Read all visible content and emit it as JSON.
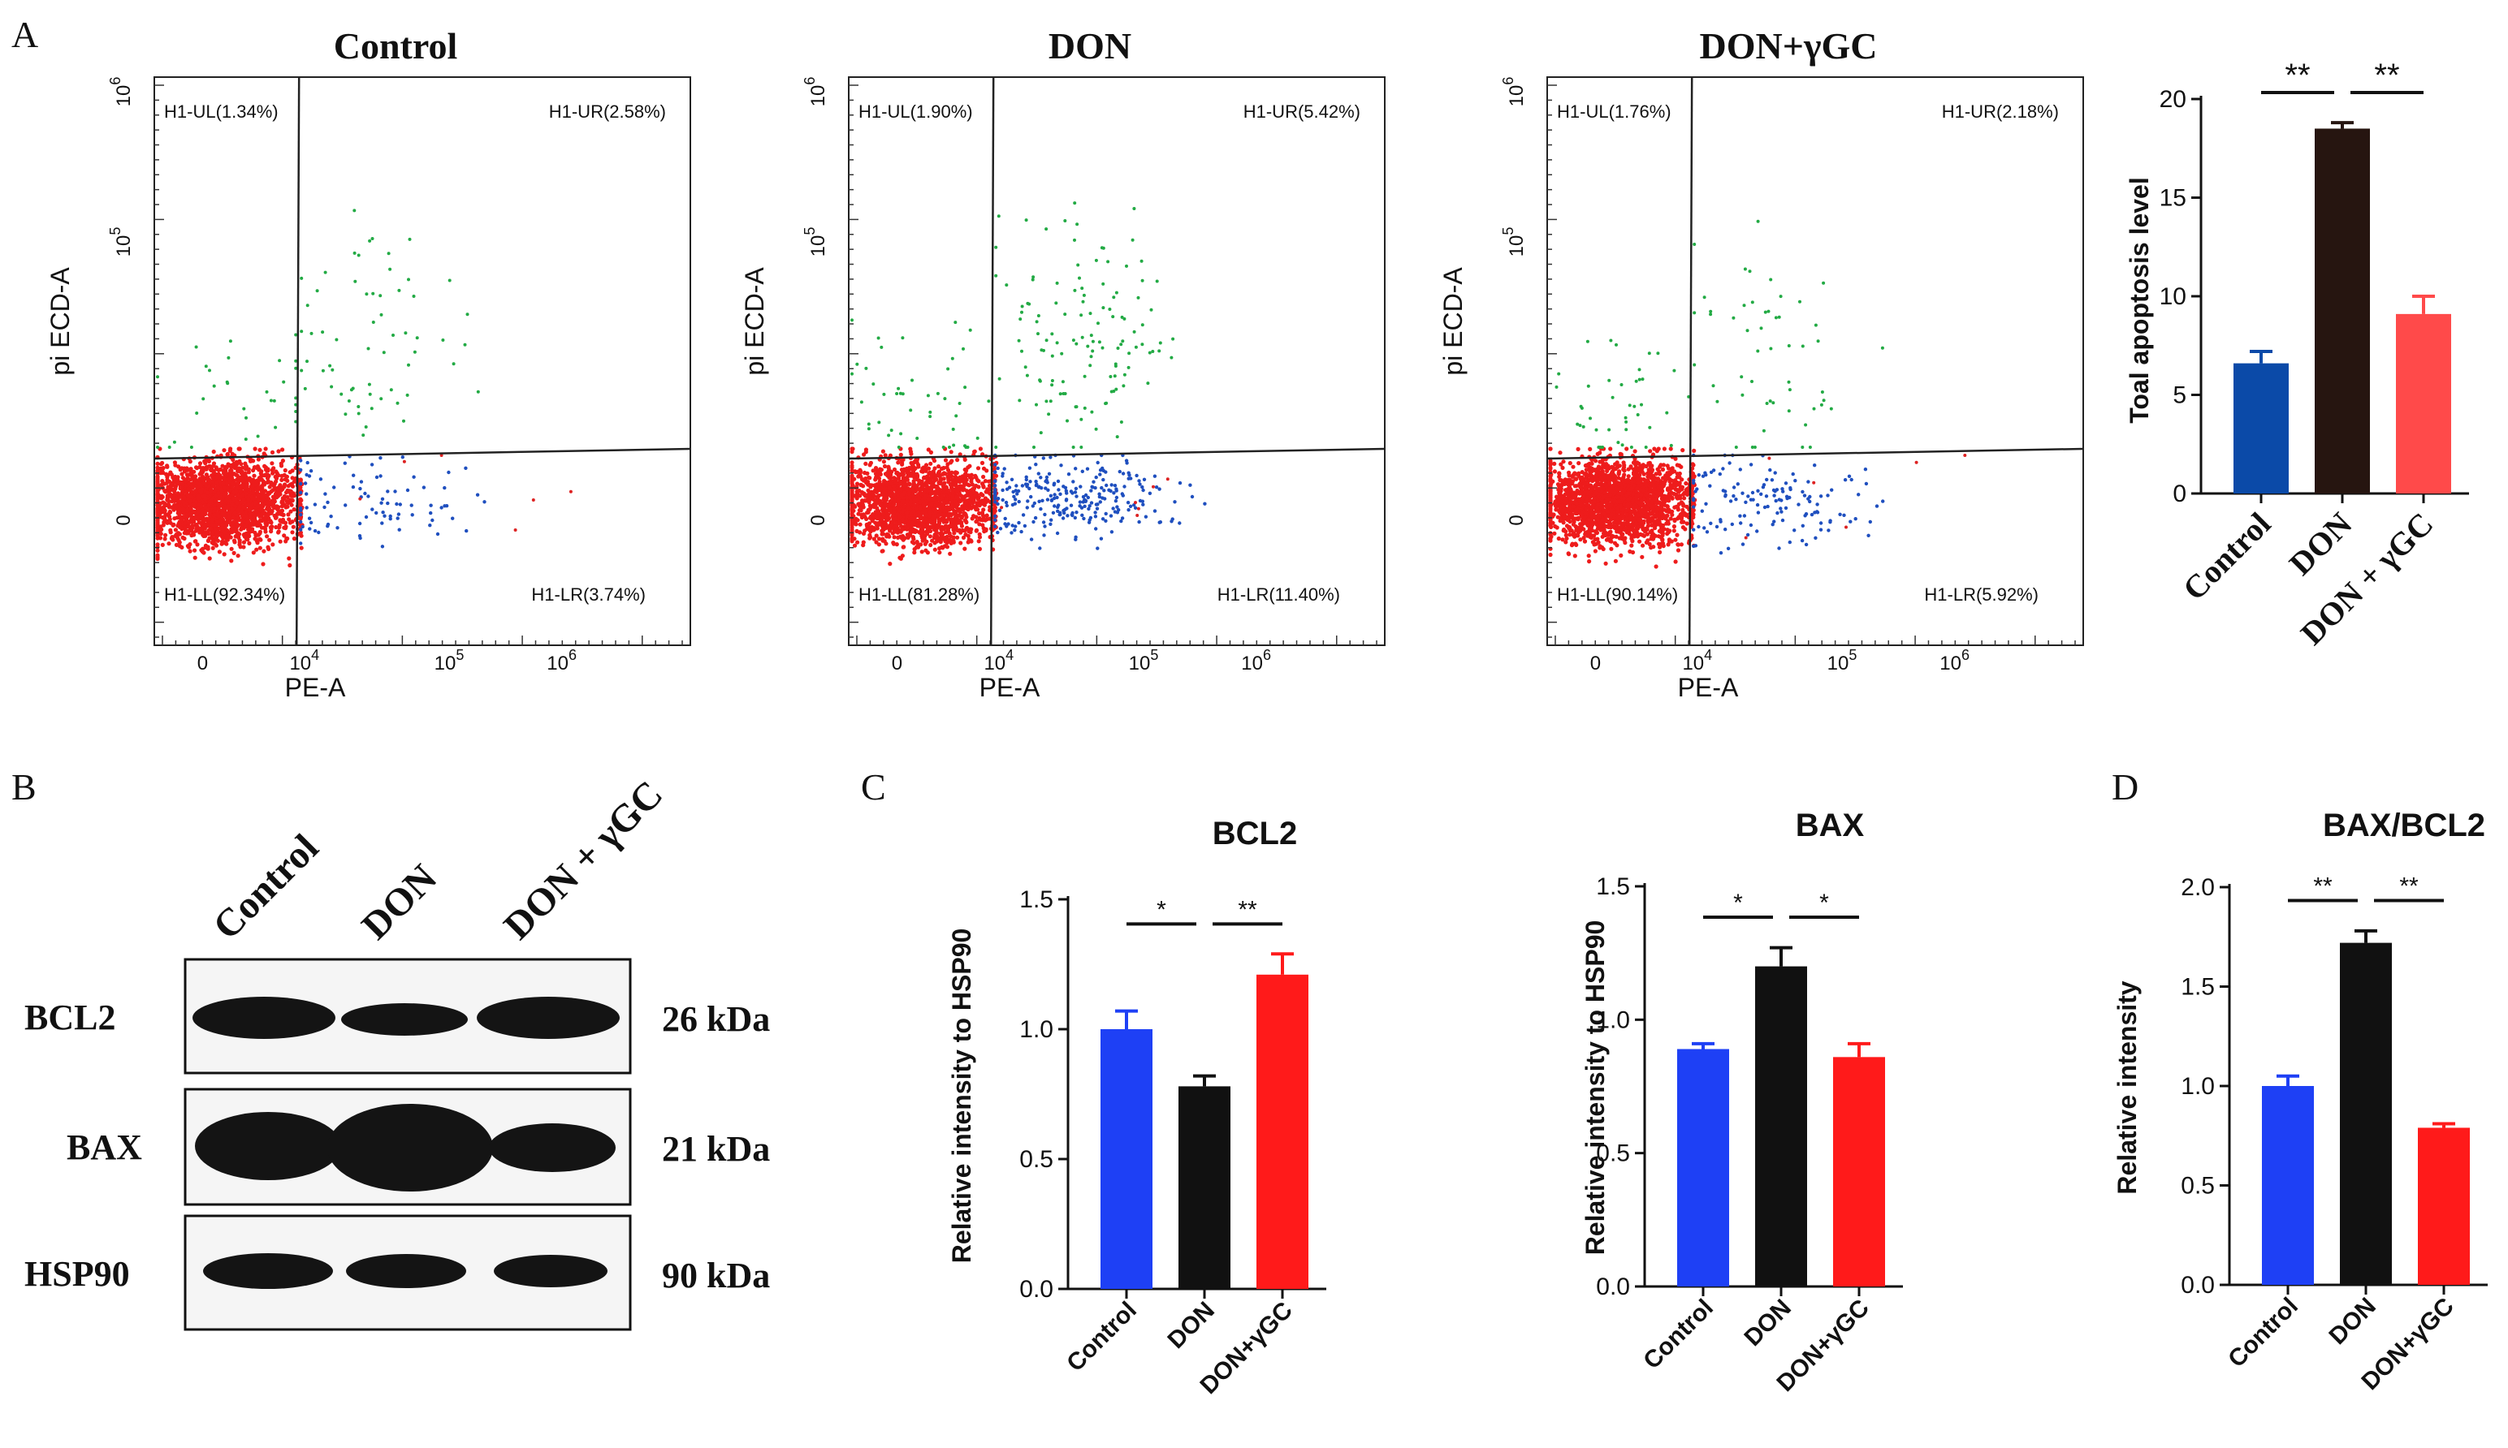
{
  "panel_letters": {
    "a": "A",
    "b": "B",
    "c": "C",
    "d": "D"
  },
  "colors": {
    "ll": "#ee1c1c",
    "ul": "#22aa44",
    "ur": "#22aa44",
    "lr": "#1f4fbf",
    "stray": "#dd2222",
    "bar_blue": "#1e40f5",
    "bar_black": "#111111",
    "bar_red": "#ff1a1a",
    "a_blue": "#0b4aa8",
    "a_dark": "#261510",
    "a_red": "#ff4a4a",
    "blot_bg": "#f5f5f5",
    "band": "#141414"
  },
  "flow": {
    "ylabel": "pi ECD-A",
    "xlabel": "PE-A",
    "yticks": [
      {
        "base": "10",
        "exp": "6"
      },
      {
        "base": "10",
        "exp": "5"
      },
      {
        "base": "0",
        "exp": ""
      }
    ],
    "xticks": [
      {
        "base": "0",
        "exp": ""
      },
      {
        "base": "10",
        "exp": "4"
      },
      {
        "base": "10",
        "exp": "5"
      },
      {
        "base": "10",
        "exp": "6"
      }
    ],
    "plots": [
      {
        "title": "Control",
        "ul": "H1-UL(1.34%)",
        "ur": "H1-UR(2.58%)",
        "ll": "H1-LL(92.34%)",
        "lr": "H1-LR(3.74%)",
        "quadrants": {
          "ul": 1.34,
          "ur": 2.58,
          "ll": 92.34,
          "lr": 3.74
        }
      },
      {
        "title": "DON",
        "ul": "H1-UL(1.90%)",
        "ur": "H1-UR(5.42%)",
        "ll": "H1-LL(81.28%)",
        "lr": "H1-LR(11.40%)",
        "quadrants": {
          "ul": 1.9,
          "ur": 5.42,
          "ll": 81.28,
          "lr": 11.4
        }
      },
      {
        "title": "DON+γGC",
        "ul": "H1-UL(1.76%)",
        "ur": "H1-UR(2.18%)",
        "ll": "H1-LL(90.14%)",
        "lr": "H1-LR(5.92%)",
        "quadrants": {
          "ul": 1.76,
          "ur": 2.18,
          "ll": 90.14,
          "lr": 5.92
        }
      }
    ]
  },
  "western": {
    "lanes": [
      "Control",
      "DON",
      "DON + γGC"
    ],
    "rows": [
      {
        "protein": "BCL2",
        "kda": "26 kDa",
        "intensity": [
          1.0,
          0.78,
          1.0
        ]
      },
      {
        "protein": "BAX",
        "kda": "21 kDa",
        "intensity": [
          1.0,
          1.3,
          0.8
        ]
      },
      {
        "protein": "HSP90",
        "kda": "90 kDa",
        "intensity": [
          1.0,
          0.95,
          0.85
        ]
      }
    ]
  },
  "chart_data": [
    {
      "id": "apoptosis",
      "type": "bar",
      "title": "",
      "ylabel": "Toal apoptosis level",
      "categories": [
        "Control",
        "DON",
        "DON + γGC"
      ],
      "values": [
        6.6,
        18.5,
        9.1
      ],
      "errors": [
        0.6,
        0.3,
        0.9
      ],
      "ylim": [
        0,
        20
      ],
      "yticks": [
        "0",
        "5",
        "10",
        "15",
        "20"
      ],
      "sig": [
        {
          "from": 0,
          "to": 1,
          "label": "**"
        },
        {
          "from": 1,
          "to": 2,
          "label": "**"
        }
      ]
    },
    {
      "id": "bcl2",
      "type": "bar",
      "title": "BCL2",
      "ylabel": "Relative intensity to HSP90",
      "categories": [
        "Control",
        "DON",
        "DON+γGC"
      ],
      "values": [
        1.0,
        0.78,
        1.21
      ],
      "errors": [
        0.07,
        0.04,
        0.08
      ],
      "ylim": [
        0,
        1.5
      ],
      "yticks": [
        "0.0",
        "0.5",
        "1.0",
        "1.5"
      ],
      "sig": [
        {
          "from": 0,
          "to": 1,
          "label": "*"
        },
        {
          "from": 1,
          "to": 2,
          "label": "**"
        }
      ]
    },
    {
      "id": "bax",
      "type": "bar",
      "title": "BAX",
      "ylabel": "Relative intensity to HSP90",
      "categories": [
        "Control",
        "DON",
        "DON+γGC"
      ],
      "values": [
        0.89,
        1.2,
        0.86
      ],
      "errors": [
        0.02,
        0.07,
        0.05
      ],
      "ylim": [
        0,
        1.5
      ],
      "yticks": [
        "0.0",
        "0.5",
        "1.0",
        "1.5"
      ],
      "sig": [
        {
          "from": 0,
          "to": 1,
          "label": "*"
        },
        {
          "from": 1,
          "to": 2,
          "label": "*"
        }
      ]
    },
    {
      "id": "ratio",
      "type": "bar",
      "title": "BAX/BCL2",
      "ylabel": "Relative intensity",
      "categories": [
        "Control",
        "DON",
        "DON+γGC"
      ],
      "values": [
        1.0,
        1.72,
        0.79
      ],
      "errors": [
        0.05,
        0.06,
        0.02
      ],
      "ylim": [
        0,
        2.0
      ],
      "yticks": [
        "0.0",
        "0.5",
        "1.0",
        "1.5",
        "2.0"
      ],
      "sig": [
        {
          "from": 0,
          "to": 1,
          "label": "**"
        },
        {
          "from": 1,
          "to": 2,
          "label": "**"
        }
      ]
    }
  ]
}
